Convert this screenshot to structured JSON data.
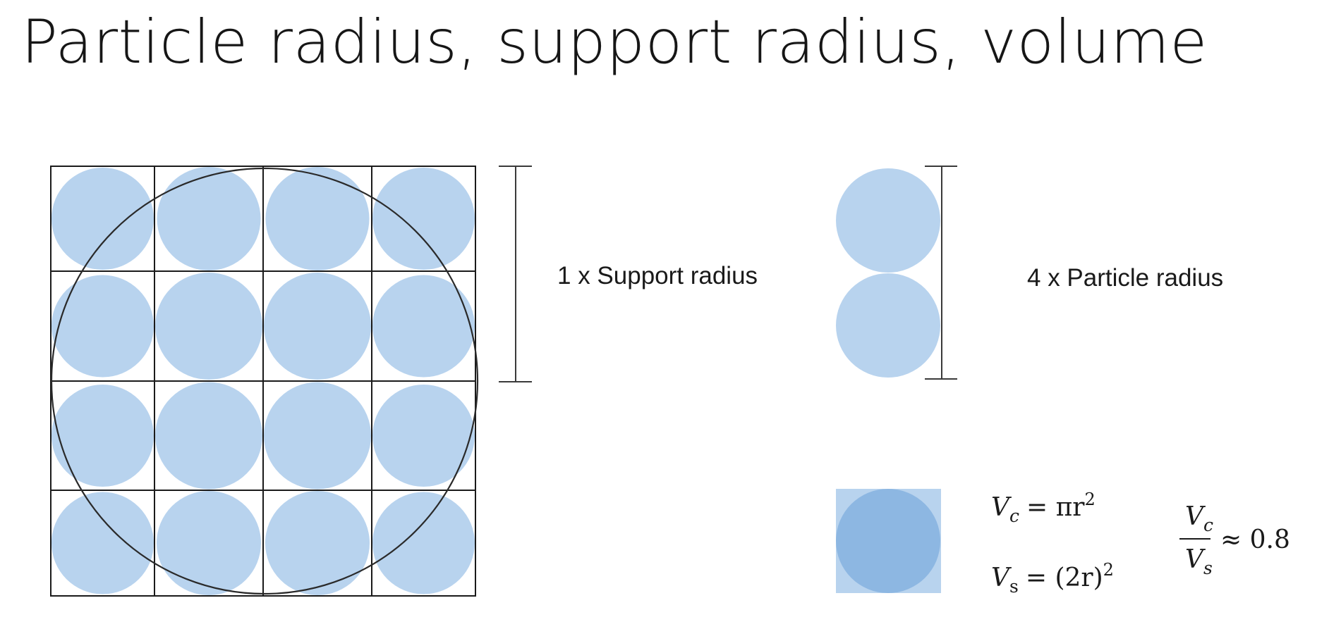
{
  "title": "Particle radius, support radius, volume",
  "labels": {
    "support": "1 x Support radius",
    "particle": "4 x Particle radius"
  },
  "formulas": {
    "vc": {
      "lhs": "V",
      "lhs_sub": "c",
      "rhs_main": "= πr",
      "rhs_sup": "2"
    },
    "vs": {
      "lhs": "V",
      "lhs_sub": "s",
      "rhs_main": "= (2r)",
      "rhs_sup": "2"
    },
    "ratio": {
      "num": "V",
      "num_sub": "c",
      "den": "V",
      "den_sub": "s",
      "approx": "≈ 0.8"
    }
  },
  "grid": {
    "rows": 4,
    "cols": 4
  },
  "colors": {
    "particle": "#b8d3ee",
    "volume_square": "#b8d3ee",
    "volume_circle": "#8db7e2",
    "line": "#1a1a1a"
  }
}
